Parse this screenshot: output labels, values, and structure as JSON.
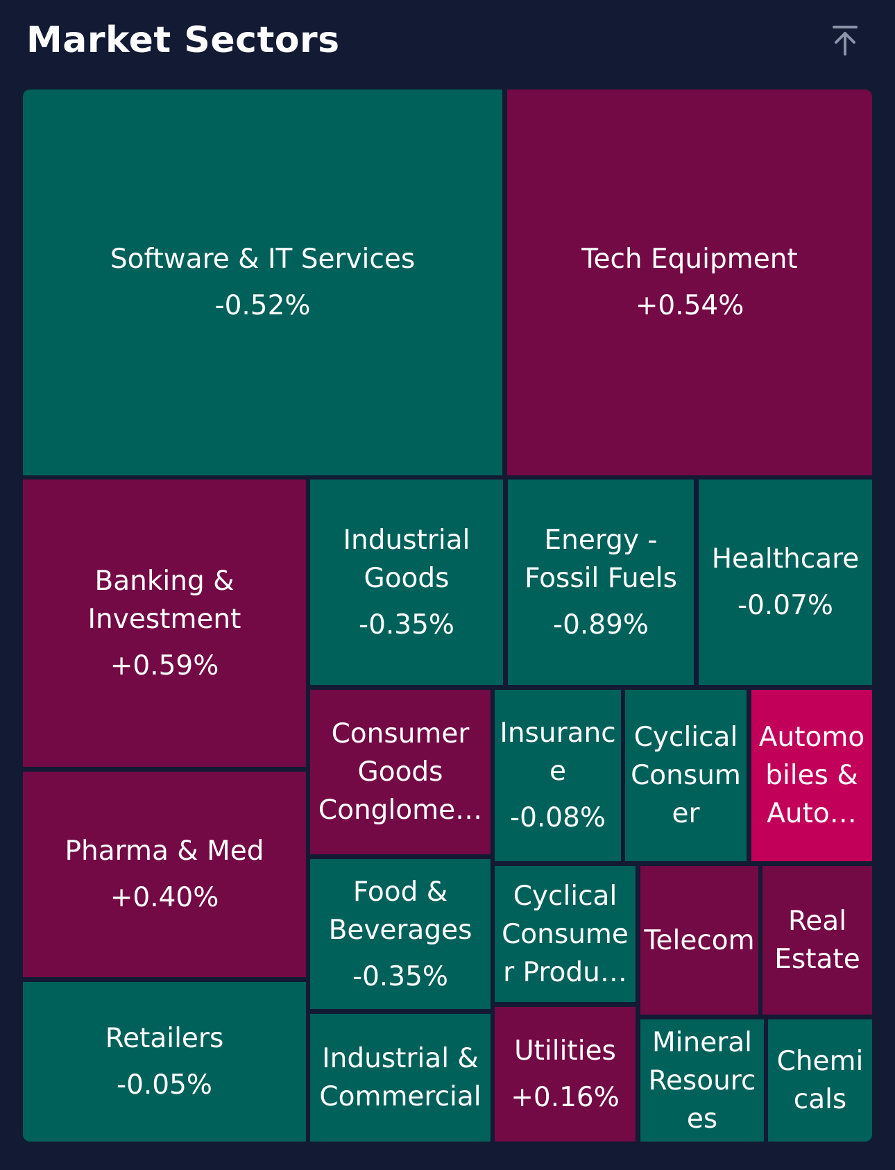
{
  "header": {
    "title": "Market Sectors",
    "scroll_top_icon": "arrow-up-to-top-icon"
  },
  "colors": {
    "background": "#131a33",
    "negative": "#00605a",
    "positive": "#730a45",
    "strong": "#c2005a"
  },
  "sectors": {
    "software": {
      "name": "Software & IT Services",
      "change": "-0.52%"
    },
    "tech_equipment": {
      "name": "Tech Equipment",
      "change": "+0.54%"
    },
    "banking": {
      "name": "Banking &\nInvestment",
      "change": "+0.59%"
    },
    "industrial_goods": {
      "name": "Industrial\nGoods",
      "change": "-0.35%"
    },
    "energy": {
      "name": "Energy -\nFossil Fuels",
      "change": "-0.89%"
    },
    "healthcare": {
      "name": "Healthcare",
      "change": "-0.07%"
    },
    "consumer_goods": {
      "name": "Consumer\nGoods\nConglome…",
      "change": ""
    },
    "insurance": {
      "name": "Insuranc\ne",
      "change": "-0.08%"
    },
    "cyclical_consumer": {
      "name": "Cyclical\nConsum\ner",
      "change": ""
    },
    "automobiles": {
      "name": "Automo\nbiles &\nAuto…",
      "change": ""
    },
    "pharma": {
      "name": "Pharma & Med",
      "change": "+0.40%"
    },
    "food": {
      "name": "Food &\nBeverages",
      "change": "-0.35%"
    },
    "cyclical_products": {
      "name": "Cyclical\nConsume\nr Produ…",
      "change": ""
    },
    "telecom": {
      "name": "Telecom",
      "change": ""
    },
    "real_estate": {
      "name": "Real\nEstate",
      "change": ""
    },
    "retailers": {
      "name": "Retailers",
      "change": "-0.05%"
    },
    "industrial_commercial": {
      "name": "Industrial &\nCommercial",
      "change": ""
    },
    "utilities": {
      "name": "Utilities",
      "change": "+0.16%"
    },
    "mineral": {
      "name": "Mineral\nResourc\nes",
      "change": ""
    },
    "chemicals": {
      "name": "Chemi\ncals",
      "change": ""
    }
  }
}
